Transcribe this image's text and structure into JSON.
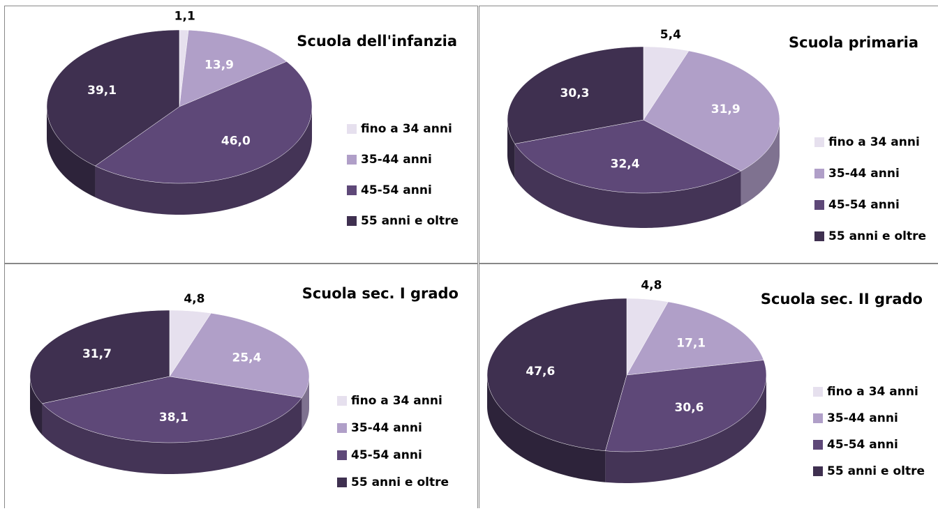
{
  "chart_data": [
    {
      "type": "pie",
      "title": "Scuola dell'infanzia",
      "categories": [
        "fino a 34 anni",
        "35-44 anni",
        "45-54 anni",
        "55 anni e oltre"
      ],
      "values": [
        1.1,
        13.9,
        46.0,
        39.1
      ],
      "value_labels": [
        "1,1",
        "13,9",
        "46,0",
        "39,1"
      ],
      "colors": [
        "#e6e0ee",
        "#b09fc8",
        "#5e4878",
        "#3f3050"
      ]
    },
    {
      "type": "pie",
      "title": "Scuola primaria",
      "categories": [
        "fino a 34 anni",
        "35-44 anni",
        "45-54 anni",
        "55 anni e oltre"
      ],
      "values": [
        5.4,
        31.9,
        32.4,
        30.3
      ],
      "value_labels": [
        "5,4",
        "31,9",
        "32,4",
        "30,3"
      ],
      "colors": [
        "#e6e0ee",
        "#b09fc8",
        "#5e4878",
        "#3f3050"
      ]
    },
    {
      "type": "pie",
      "title": "Scuola sec. I grado",
      "categories": [
        "fino a 34 anni",
        "35-44 anni",
        "45-54 anni",
        "55 anni e oltre"
      ],
      "values": [
        4.8,
        25.4,
        38.1,
        31.7
      ],
      "value_labels": [
        "4,8",
        "25,4",
        "38,1",
        "31,7"
      ],
      "colors": [
        "#e6e0ee",
        "#b09fc8",
        "#5e4878",
        "#3f3050"
      ]
    },
    {
      "type": "pie",
      "title": "Scuola sec. II grado",
      "categories": [
        "fino a 34 anni",
        "35-44 anni",
        "45-54 anni",
        "55 anni e oltre"
      ],
      "values": [
        4.8,
        17.1,
        30.6,
        47.6
      ],
      "value_labels": [
        "4,8",
        "17,1",
        "30,6",
        "47,6"
      ],
      "colors": [
        "#e6e0ee",
        "#b09fc8",
        "#5e4878",
        "#3f3050"
      ]
    }
  ]
}
